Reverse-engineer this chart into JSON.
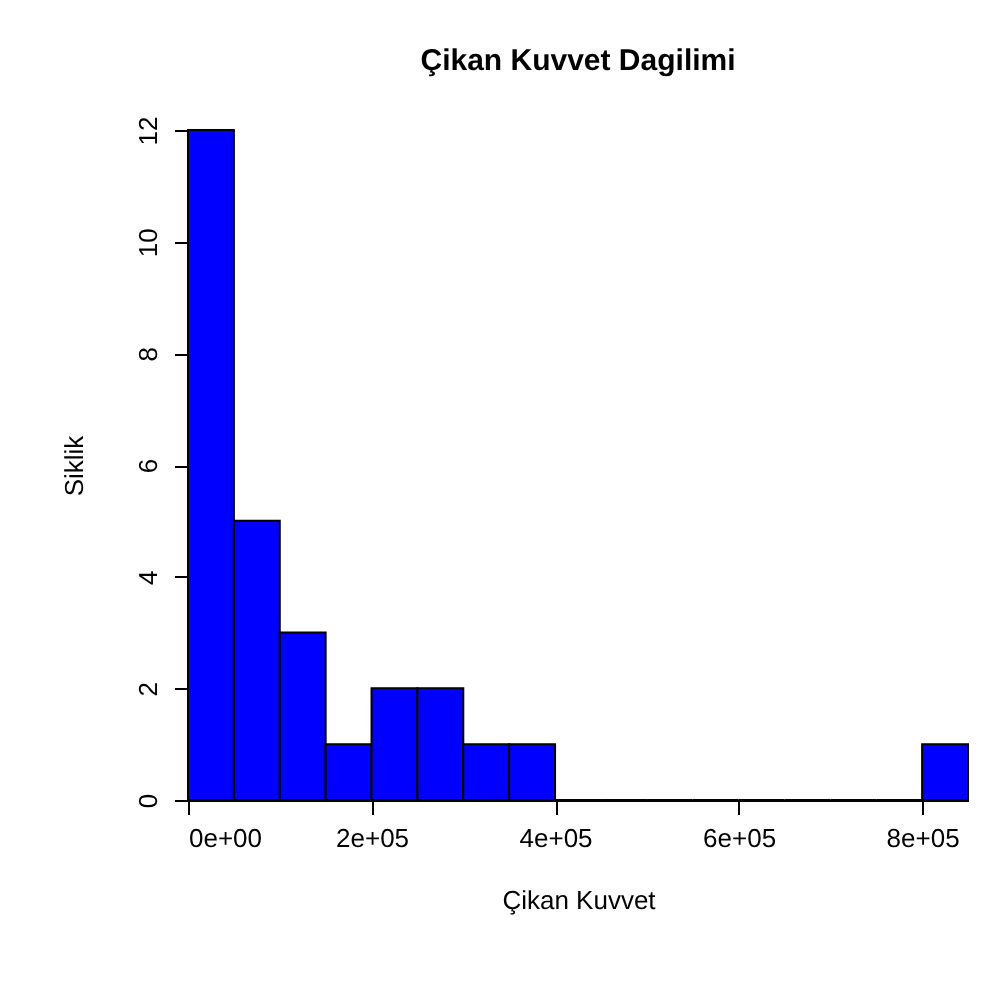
{
  "chart_data": {
    "type": "histogram",
    "title": "Çikan Kuvvet Dagilimi",
    "xlabel": "Çikan Kuvvet",
    "ylabel": "Siklik",
    "bins": [
      0,
      50000,
      100000,
      150000,
      200000,
      250000,
      300000,
      350000,
      400000,
      450000,
      500000,
      550000,
      600000,
      650000,
      700000,
      750000,
      800000,
      850000
    ],
    "values": [
      12,
      5,
      3,
      1,
      2,
      2,
      1,
      1,
      0,
      0,
      0,
      0,
      0,
      0,
      0,
      0,
      1
    ],
    "color": "#0000ff",
    "xlim": [
      0,
      850000
    ],
    "ylim": [
      0,
      12
    ],
    "xticks": [
      {
        "value": 0,
        "label": "0e+00"
      },
      {
        "value": 200000,
        "label": "2e+05"
      },
      {
        "value": 400000,
        "label": "4e+05"
      },
      {
        "value": 600000,
        "label": "6e+05"
      },
      {
        "value": 800000,
        "label": "8e+05"
      }
    ],
    "yticks": [
      0,
      2,
      4,
      6,
      8,
      10,
      12
    ],
    "grid": false
  }
}
